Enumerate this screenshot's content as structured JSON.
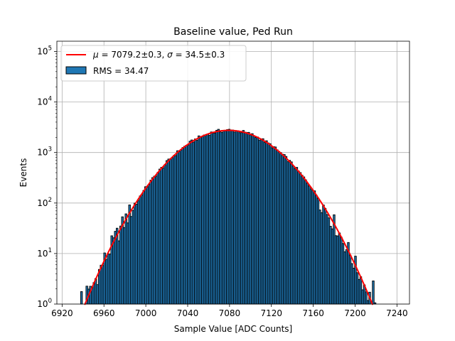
{
  "chart_data": {
    "type": "bar",
    "title": "Baseline value, Ped Run",
    "xlabel": "Sample Value [ADC Counts]",
    "ylabel": "Events",
    "xlim": [
      6915,
      7252
    ],
    "ylim": [
      1,
      160000
    ],
    "yscale": "log",
    "grid": true,
    "x_ticks": [
      "6920",
      "6960",
      "7000",
      "7040",
      "7080",
      "7120",
      "7160",
      "7200",
      "7240"
    ],
    "y_ticks": [
      {
        "base": "10",
        "exp": "0",
        "value": 1
      },
      {
        "base": "10",
        "exp": "1",
        "value": 10
      },
      {
        "base": "10",
        "exp": "2",
        "value": 100
      },
      {
        "base": "10",
        "exp": "3",
        "value": 1000
      },
      {
        "base": "10",
        "exp": "4",
        "value": 10000
      },
      {
        "base": "10",
        "exp": "5",
        "value": 100000
      }
    ],
    "histogram": {
      "bin_width": 1.7,
      "x_start": 6936,
      "x_end": 7221,
      "color": "#1f77b4",
      "edge_color": "#000000",
      "legend": "RMS = 34.47"
    },
    "fit": {
      "mu": 7079.2,
      "sigma": 34.5,
      "amplitude": 2750,
      "color": "#ff0000",
      "legend_mu": "μ",
      "legend_sigma": "σ",
      "legend_eq": " = 7079.2±0.3, ",
      "legend_eq2": " = 34.5±0.3"
    },
    "legend_position": "upper-left"
  }
}
